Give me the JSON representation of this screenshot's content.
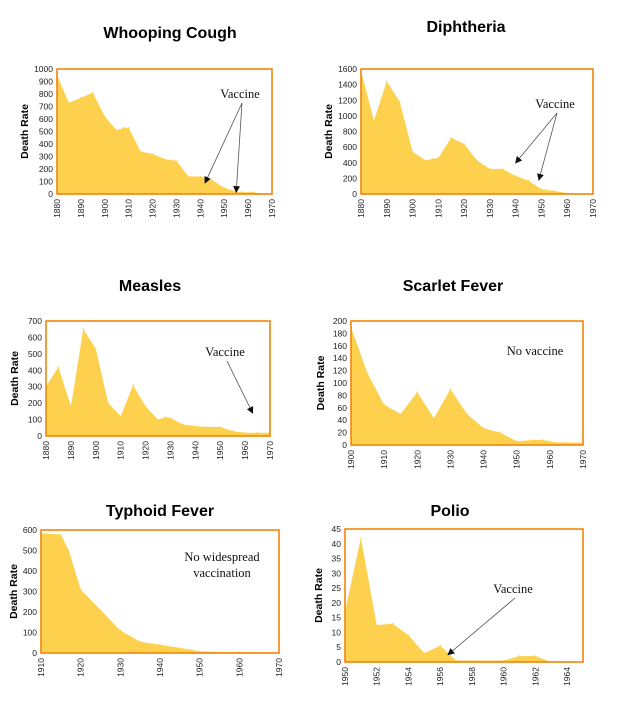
{
  "colors": {
    "fill": "#FDD04E",
    "frame": "#F0860A",
    "arrow": "#555555"
  },
  "chart_data": [
    {
      "type": "area",
      "title": "Whooping Cough",
      "ylabel": "Death Rate",
      "xlabel": "",
      "xlim": [
        1880,
        1970
      ],
      "ylim": [
        0,
        1000
      ],
      "yticks": [
        0,
        100,
        200,
        300,
        400,
        500,
        600,
        700,
        800,
        900,
        1000
      ],
      "xticks": [
        1880,
        1890,
        1900,
        1910,
        1920,
        1930,
        1940,
        1950,
        1960,
        1970
      ],
      "x": [
        1880,
        1885,
        1890,
        1895,
        1900,
        1905,
        1908,
        1910,
        1915,
        1920,
        1925,
        1928,
        1930,
        1935,
        1940,
        1945,
        1950,
        1955,
        1957,
        1962,
        1965,
        1970
      ],
      "values": [
        950,
        730,
        770,
        810,
        620,
        510,
        530,
        530,
        340,
        320,
        280,
        270,
        265,
        140,
        140,
        110,
        50,
        20,
        15,
        15,
        5,
        5
      ],
      "annotation": {
        "text": "Vaccine",
        "targets": [
          [
            1942,
            90
          ],
          [
            1955,
            15
          ]
        ]
      }
    },
    {
      "type": "area",
      "title": "Diphtheria",
      "ylabel": "Death Rate",
      "xlabel": "",
      "xlim": [
        1880,
        1970
      ],
      "ylim": [
        0,
        1600
      ],
      "yticks": [
        0,
        200,
        400,
        600,
        800,
        1000,
        1200,
        1400,
        1600
      ],
      "xticks": [
        1880,
        1890,
        1900,
        1910,
        1920,
        1930,
        1940,
        1950,
        1960,
        1970
      ],
      "x": [
        1880,
        1885,
        1890,
        1895,
        1900,
        1905,
        1908,
        1910,
        1915,
        1920,
        1925,
        1930,
        1935,
        1940,
        1945,
        1950,
        1952,
        1955,
        1958,
        1960,
        1965,
        1970
      ],
      "values": [
        1580,
        940,
        1440,
        1180,
        540,
        430,
        450,
        460,
        720,
        640,
        430,
        320,
        320,
        230,
        170,
        60,
        50,
        40,
        20,
        10,
        5,
        5
      ],
      "annotation": {
        "text": "Vaccine",
        "targets": [
          [
            1940,
            400
          ],
          [
            1949,
            180
          ]
        ]
      }
    },
    {
      "type": "area",
      "title": "Measles",
      "ylabel": "Death Rate",
      "xlabel": "",
      "xlim": [
        1880,
        1970
      ],
      "ylim": [
        0,
        700
      ],
      "yticks": [
        0,
        100,
        200,
        300,
        400,
        500,
        600,
        700
      ],
      "xticks": [
        1880,
        1890,
        1900,
        1910,
        1920,
        1930,
        1940,
        1950,
        1960,
        1970
      ],
      "x": [
        1880,
        1885,
        1890,
        1895,
        1900,
        1905,
        1910,
        1915,
        1920,
        1925,
        1928,
        1930,
        1935,
        1940,
        1945,
        1950,
        1955,
        1960,
        1965,
        1970
      ],
      "values": [
        300,
        420,
        180,
        650,
        530,
        200,
        120,
        310,
        180,
        100,
        115,
        110,
        70,
        60,
        55,
        55,
        30,
        20,
        20,
        20
      ],
      "annotation": {
        "text": "Vaccine",
        "targets": [
          [
            1963,
            140
          ]
        ]
      }
    },
    {
      "type": "area",
      "title": "Scarlet Fever",
      "ylabel": "Death Rate",
      "xlabel": "",
      "xlim": [
        1900,
        1970
      ],
      "ylim": [
        0,
        200
      ],
      "yticks": [
        0,
        20,
        40,
        60,
        80,
        100,
        120,
        140,
        160,
        180,
        200
      ],
      "xticks": [
        1900,
        1910,
        1920,
        1930,
        1940,
        1950,
        1960,
        1970
      ],
      "x": [
        1900,
        1905,
        1910,
        1915,
        1920,
        1925,
        1930,
        1935,
        1940,
        1945,
        1950,
        1955,
        1958,
        1960,
        1962,
        1965,
        1970
      ],
      "values": [
        190,
        115,
        65,
        50,
        85,
        43,
        90,
        50,
        27,
        20,
        6,
        8,
        8,
        6,
        4,
        4,
        4
      ],
      "annotation": {
        "text": "No vaccine",
        "targets": []
      }
    },
    {
      "type": "area",
      "title": "Typhoid Fever",
      "ylabel": "Death Rate",
      "xlabel": "",
      "xlim": [
        1910,
        1970
      ],
      "ylim": [
        0,
        600
      ],
      "yticks": [
        0,
        100,
        200,
        300,
        400,
        500,
        600
      ],
      "xticks": [
        1910,
        1920,
        1930,
        1940,
        1950,
        1960,
        1970
      ],
      "x": [
        1910,
        1915,
        1917,
        1920,
        1925,
        1930,
        1935,
        1940,
        1945,
        1948,
        1950,
        1955,
        1960,
        1967,
        1970
      ],
      "values": [
        585,
        578,
        500,
        310,
        210,
        110,
        55,
        40,
        25,
        15,
        8,
        5,
        5,
        3,
        2
      ],
      "annotation": {
        "text": "No widespread\nvaccination",
        "targets": []
      }
    },
    {
      "type": "area",
      "title": "Polio",
      "ylabel": "Death Rate",
      "xlabel": "",
      "xlim": [
        1950,
        1965
      ],
      "ylim": [
        0,
        45
      ],
      "yticks": [
        0,
        5,
        10,
        15,
        20,
        25,
        30,
        35,
        40,
        45
      ],
      "xticks": [
        1950,
        1952,
        1954,
        1956,
        1958,
        1960,
        1962,
        1964
      ],
      "x": [
        1950,
        1951,
        1952,
        1953,
        1954,
        1955,
        1956,
        1957,
        1958,
        1960,
        1961,
        1962,
        1963,
        1964,
        1965
      ],
      "values": [
        17,
        42,
        12.5,
        13,
        9,
        3,
        5.5,
        0.5,
        0.5,
        0.5,
        2,
        2,
        0,
        0,
        0
      ],
      "annotation": {
        "text": "Vaccine",
        "targets": [
          [
            1956.5,
            2.5
          ]
        ]
      }
    }
  ]
}
